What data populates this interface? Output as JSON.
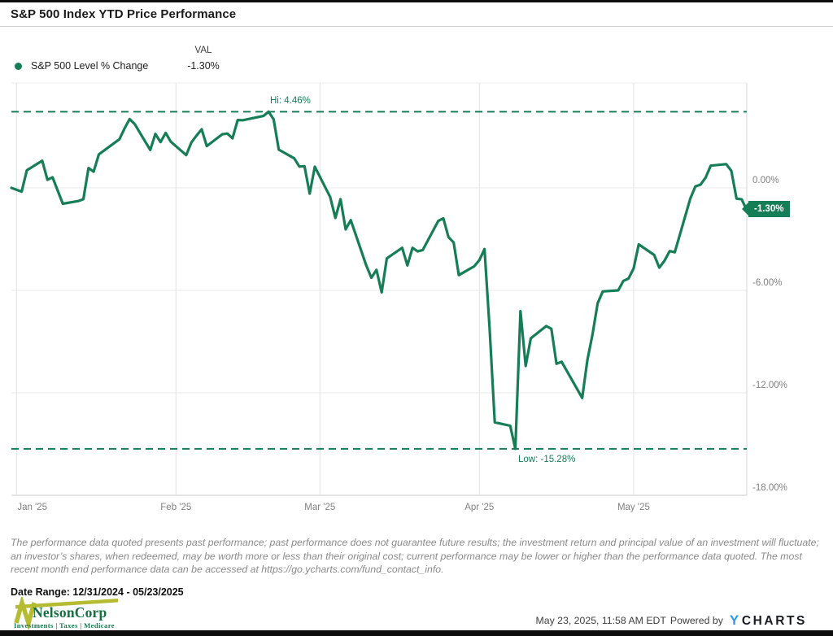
{
  "header": {
    "title": "S&P 500 Index YTD Price Performance"
  },
  "legend": {
    "val_header": "VAL",
    "series_label": "S&P 500 Level % Change",
    "series_value": "-1.30%"
  },
  "chart_data": {
    "type": "line",
    "title": "S&P 500 Index YTD Price Performance",
    "series_name": "S&P 500 Level % Change",
    "unit": "percent_change_ytd",
    "x_range": [
      "12/31/2024",
      "05/23/2025"
    ],
    "ylim": [
      -18.0,
      6.2
    ],
    "grid": true,
    "line_color": "#167e56",
    "grid_color": "#e9e9e9",
    "border_color": "#d6d6d6",
    "axis_label_color": "#808080",
    "hi": {
      "label": "Hi: 4.46%",
      "value": 4.46
    },
    "low": {
      "label": "Low: -15.28%",
      "value": -15.28
    },
    "last_badge": "-1.30%",
    "y_ticks": [
      {
        "label": "0.00%",
        "value": 0
      },
      {
        "label": "-6.00%",
        "value": -6
      },
      {
        "label": "-12.00%",
        "value": -12
      },
      {
        "label": "-18.00%",
        "value": -18
      }
    ],
    "x_ticks": [
      {
        "label": "Jan '25",
        "date": "1/1",
        "align": "left"
      },
      {
        "label": "Feb '25",
        "date": "2/1",
        "align": "center"
      },
      {
        "label": "Mar '25",
        "date": "3/1",
        "align": "center"
      },
      {
        "label": "Apr '25",
        "date": "4/1",
        "align": "center"
      },
      {
        "label": "May '25",
        "date": "5/1",
        "align": "center"
      }
    ],
    "dates": [
      "12/31",
      "1/2",
      "1/3",
      "1/6",
      "1/7",
      "1/8",
      "1/10",
      "1/13",
      "1/14",
      "1/15",
      "1/16",
      "1/17",
      "1/21",
      "1/22",
      "1/23",
      "1/24",
      "1/27",
      "1/28",
      "1/29",
      "1/30",
      "1/31",
      "2/3",
      "2/4",
      "2/5",
      "2/6",
      "2/7",
      "2/10",
      "2/11",
      "2/12",
      "2/13",
      "2/14",
      "2/18",
      "2/19",
      "2/20",
      "2/21",
      "2/24",
      "2/25",
      "2/26",
      "2/27",
      "2/28",
      "3/3",
      "3/4",
      "3/5",
      "3/6",
      "3/7",
      "3/10",
      "3/11",
      "3/12",
      "3/13",
      "3/14",
      "3/17",
      "3/18",
      "3/19",
      "3/20",
      "3/21",
      "3/24",
      "3/25",
      "3/26",
      "3/27",
      "3/28",
      "3/31",
      "4/1",
      "4/2",
      "4/3",
      "4/4",
      "4/7",
      "4/8",
      "4/9",
      "4/10",
      "4/11",
      "4/14",
      "4/15",
      "4/16",
      "4/17",
      "4/21",
      "4/22",
      "4/23",
      "4/24",
      "4/25",
      "4/28",
      "4/29",
      "4/30",
      "5/1",
      "5/2",
      "5/5",
      "5/6",
      "5/7",
      "5/8",
      "5/9",
      "5/12",
      "5/13",
      "5/14",
      "5/15",
      "5/16",
      "5/19",
      "5/20",
      "5/21",
      "5/22",
      "5/23"
    ],
    "values": [
      0,
      -0.22,
      1.03,
      1.59,
      0.47,
      0.62,
      -0.93,
      -0.77,
      -0.66,
      1.16,
      0.95,
      1.96,
      2.85,
      3.48,
      4.03,
      3.73,
      2.22,
      3.16,
      2.68,
      3.22,
      2.7,
      1.92,
      2.66,
      3.06,
      3.43,
      2.45,
      3.14,
      3.18,
      2.9,
      3.97,
      3.96,
      4.21,
      4.46,
      4.01,
      2.24,
      1.73,
      1.25,
      1.27,
      -0.34,
      1.24,
      -0.54,
      -1.76,
      -0.66,
      -2.43,
      -1.89,
      -4.54,
      -5.26,
      -4.8,
      -6.12,
      -4.13,
      -3.51,
      -4.54,
      -3.51,
      -3.72,
      -3.64,
      -1.94,
      -1.78,
      -2.88,
      -3.2,
      -5.11,
      -4.59,
      -4.23,
      -3.58,
      -8.25,
      -13.73,
      -13.93,
      -15.28,
      -7.22,
      -10.43,
      -8.81,
      -8.09,
      -8.25,
      -10.3,
      -10.18,
      -12.3,
      -10.1,
      -8.6,
      -6.75,
      -6.06,
      -6.0,
      -5.45,
      -5.31,
      -4.72,
      -3.31,
      -3.93,
      -4.67,
      -4.26,
      -3.7,
      -3.77,
      -0.64,
      0.08,
      0.19,
      0.6,
      1.3,
      1.39,
      1.0,
      -0.63,
      -0.67,
      -1.3
    ]
  },
  "disclaimer": "The performance data quoted presents past performance; past performance does not guarantee future results; the investment return and principal value of an investment will fluctuate; an investor’s shares, when redeemed, may be worth more or less than their original cost; current performance may be lower or higher than the performance data quoted. The most recent month end performance data can be accessed at https://go.ycharts.com/fund_contact_info.",
  "date_range_label": "Date Range: 12/31/2024 - 05/23/2025",
  "nelsoncorp": {
    "name": "NelsonCorp",
    "tagline": "Investments | Taxes | Medicare",
    "name_color": "#156f41",
    "tagline_color": "#0f7a4b",
    "mark_color": "#b5bc31"
  },
  "footer": {
    "timestamp": "May 23, 2025, 11:58 AM EDT",
    "powered_by": "Powered by",
    "brand_y": "Y",
    "brand_rest": "CHARTS",
    "brand_y_color": "#2b99f0",
    "brand_rest_color": "#191c24"
  }
}
